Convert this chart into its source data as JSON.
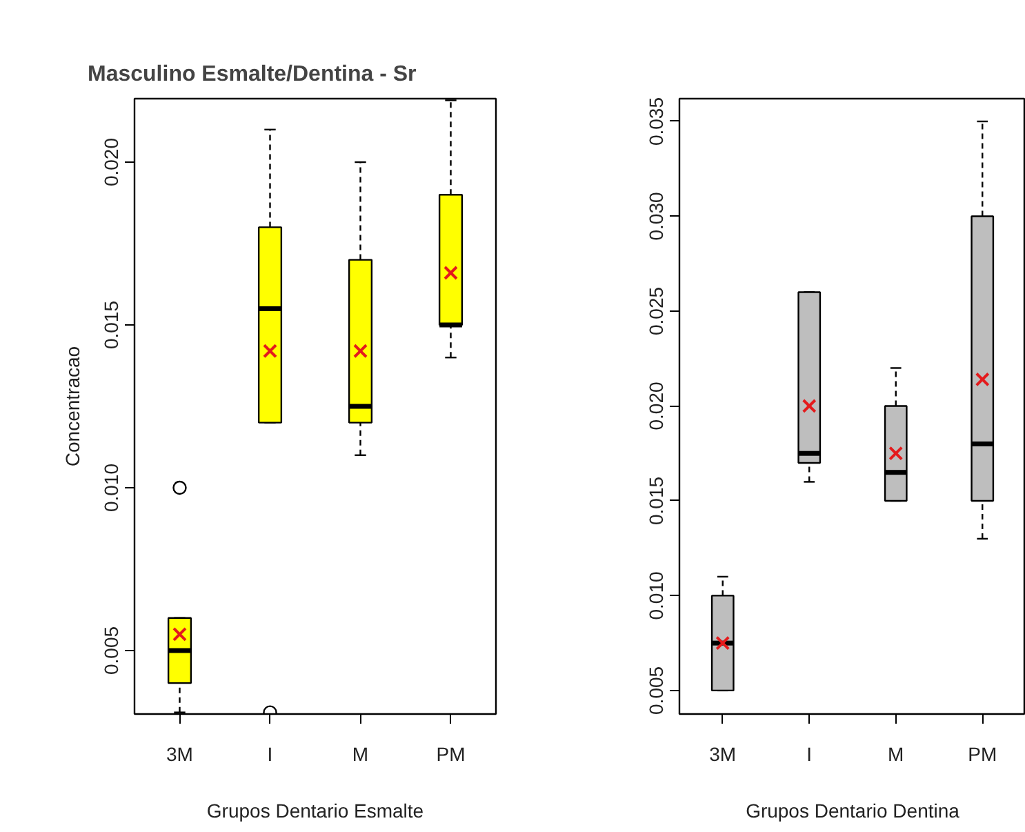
{
  "chart_data": [
    {
      "type": "box",
      "title": "Masculino Esmalte/Dentina - Sr",
      "xlabel": "Grupos Dentario Esmalte",
      "ylabel": "Concentracao",
      "categories": [
        "3M",
        "I",
        "M",
        "PM"
      ],
      "ylim": [
        0.00305,
        0.02195
      ],
      "yticks": [
        0.005,
        {
          "value": 0.01,
          "label": "0.010"
        },
        0.015,
        {
          "value": 0.02,
          "label": "0.020"
        }
      ],
      "grid": false,
      "series": [
        {
          "color": "#ffff00",
          "boxes": [
            {
              "low": 0.0031,
              "q1": 0.004,
              "median": 0.005,
              "q3": 0.006,
              "high": 0.006,
              "mean": 0.0055,
              "outliers": [
                0.01
              ]
            },
            {
              "low": 0.012,
              "q1": 0.012,
              "median": 0.0155,
              "q3": 0.018,
              "high": 0.021,
              "mean": 0.0142,
              "outliers": [
                0.0031
              ]
            },
            {
              "low": 0.011,
              "q1": 0.012,
              "median": 0.0125,
              "q3": 0.017,
              "high": 0.02,
              "mean": 0.0142
            },
            {
              "low": 0.014,
              "q1": 0.015,
              "median": 0.015,
              "q3": 0.019,
              "high": 0.0219,
              "mean": 0.0166
            }
          ]
        }
      ]
    },
    {
      "type": "box",
      "xlabel": "Grupos Dentario Dentina",
      "categories": [
        "3M",
        "I",
        "M",
        "PM"
      ],
      "ylim": [
        0.00376,
        0.0362
      ],
      "yticks": [
        0.005,
        {
          "value": 0.01,
          "label": "0.010"
        },
        0.015,
        {
          "value": 0.02,
          "label": "0.020"
        },
        0.025,
        {
          "value": 0.03,
          "label": "0.030"
        },
        0.035
      ],
      "grid": false,
      "series": [
        {
          "color": "#bebebe",
          "boxes": [
            {
              "low": 0.005,
              "q1": 0.005,
              "median": 0.0075,
              "q3": 0.01,
              "high": 0.011,
              "mean": 0.0075
            },
            {
              "low": 0.016,
              "q1": 0.017,
              "median": 0.0175,
              "q3": 0.026,
              "high": 0.026,
              "mean": 0.02
            },
            {
              "low": 0.015,
              "q1": 0.015,
              "median": 0.0165,
              "q3": 0.02,
              "high": 0.022,
              "mean": 0.0175
            },
            {
              "low": 0.013,
              "q1": 0.015,
              "median": 0.018,
              "q3": 0.03,
              "high": 0.035,
              "mean": 0.0214
            }
          ]
        }
      ]
    }
  ]
}
